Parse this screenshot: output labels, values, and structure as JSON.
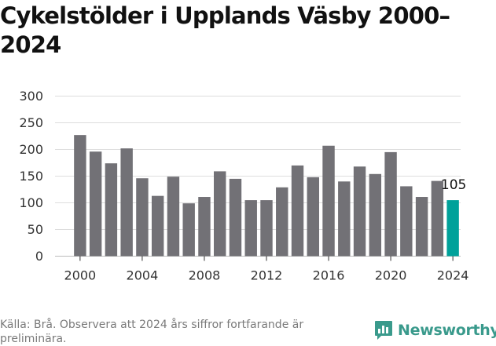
{
  "title": "Cykelstölder i Upplands Väsby 2000–2024",
  "source": "Källa: Brå. Observera att 2024 års siffror fortfarande är preliminära.",
  "brand": {
    "name": "Newsworthy",
    "icon": "newsworthy-logo-icon",
    "color": "#3a9a8c"
  },
  "colors": {
    "bar": "#727176",
    "highlight": "#00a19a",
    "grid": "#dddddd"
  },
  "chart_data": {
    "type": "bar",
    "title": "Cykelstölder i Upplands Väsby 2000–2024",
    "categories": [
      2000,
      2001,
      2002,
      2003,
      2004,
      2005,
      2006,
      2007,
      2008,
      2009,
      2010,
      2011,
      2012,
      2013,
      2014,
      2015,
      2016,
      2017,
      2018,
      2019,
      2020,
      2021,
      2022,
      2023,
      2024
    ],
    "values": [
      227,
      196,
      174,
      202,
      146,
      113,
      149,
      99,
      111,
      159,
      145,
      105,
      105,
      129,
      170,
      148,
      207,
      140,
      168,
      154,
      195,
      131,
      111,
      141,
      105
    ],
    "xticks": [
      "2000",
      "2004",
      "2008",
      "2012",
      "2016",
      "2020",
      "2024"
    ],
    "yticks": [
      "0",
      "50",
      "100",
      "150",
      "200",
      "250",
      "300"
    ],
    "ylim": [
      0,
      300
    ],
    "highlight_category": 2024,
    "annotation": {
      "category": 2024,
      "text": "105"
    },
    "grid": true,
    "legend": "none",
    "xlabel": "",
    "ylabel": ""
  }
}
